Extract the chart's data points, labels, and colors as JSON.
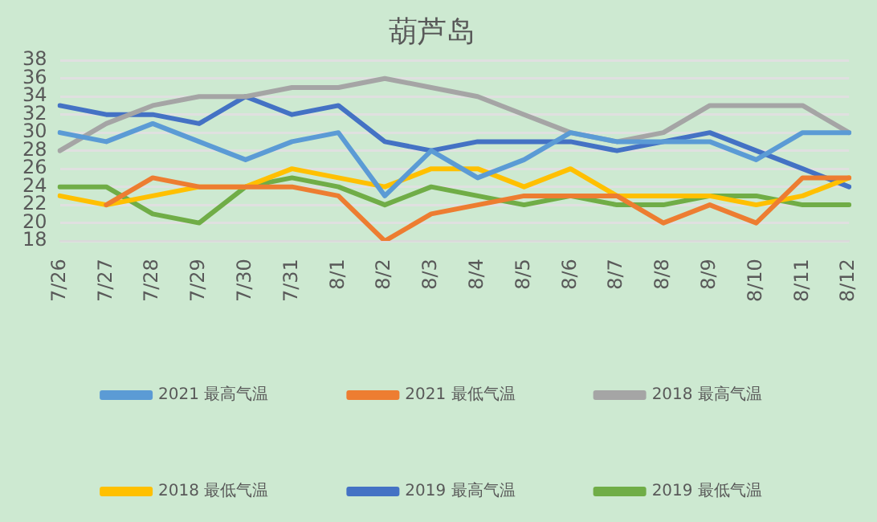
{
  "chart_data": {
    "type": "line",
    "title": "葫芦岛",
    "categories": [
      "7/26",
      "7/27",
      "7/28",
      "7/29",
      "7/30",
      "7/31",
      "8/1",
      "8/2",
      "8/3",
      "8/4",
      "8/5",
      "8/6",
      "8/7",
      "8/8",
      "8/9",
      "8/10",
      "8/11",
      "8/12"
    ],
    "series": [
      {
        "name": "2021 最高气温",
        "color": "#5b9bd5",
        "values": [
          30,
          29,
          31,
          29,
          27,
          29,
          30,
          23,
          28,
          25,
          27,
          30,
          29,
          29,
          29,
          27,
          30,
          30
        ]
      },
      {
        "name": "2021 最低气温",
        "color": "#ed7d31",
        "values": [
          null,
          22,
          25,
          24,
          24,
          24,
          23,
          18,
          21,
          22,
          23,
          23,
          23,
          20,
          22,
          20,
          25,
          25
        ]
      },
      {
        "name": "2018 最高气温",
        "color": "#a5a5a5",
        "values": [
          28,
          31,
          33,
          34,
          34,
          35,
          35,
          36,
          35,
          34,
          32,
          30,
          29,
          30,
          33,
          33,
          33,
          30
        ]
      },
      {
        "name": "2018 最低气温",
        "color": "#ffc000",
        "values": [
          23,
          22,
          23,
          24,
          24,
          26,
          25,
          24,
          26,
          26,
          24,
          26,
          23,
          23,
          23,
          22,
          23,
          25
        ]
      },
      {
        "name": "2019 最高气温",
        "color": "#4472c4",
        "values": [
          33,
          32,
          32,
          31,
          34,
          32,
          33,
          29,
          28,
          29,
          29,
          29,
          28,
          29,
          30,
          28,
          26,
          24
        ]
      },
      {
        "name": "2019 最低气温",
        "color": "#70ad47",
        "values": [
          24,
          24,
          21,
          20,
          24,
          25,
          24,
          22,
          24,
          23,
          22,
          23,
          22,
          22,
          23,
          23,
          22,
          22
        ]
      }
    ],
    "ylim": [
      18,
      38
    ],
    "yticks": [
      18,
      20,
      22,
      24,
      26,
      28,
      30,
      32,
      34,
      36,
      38
    ],
    "grid": "y",
    "legend": "bottom",
    "marker": "none",
    "line_style": "solid"
  }
}
